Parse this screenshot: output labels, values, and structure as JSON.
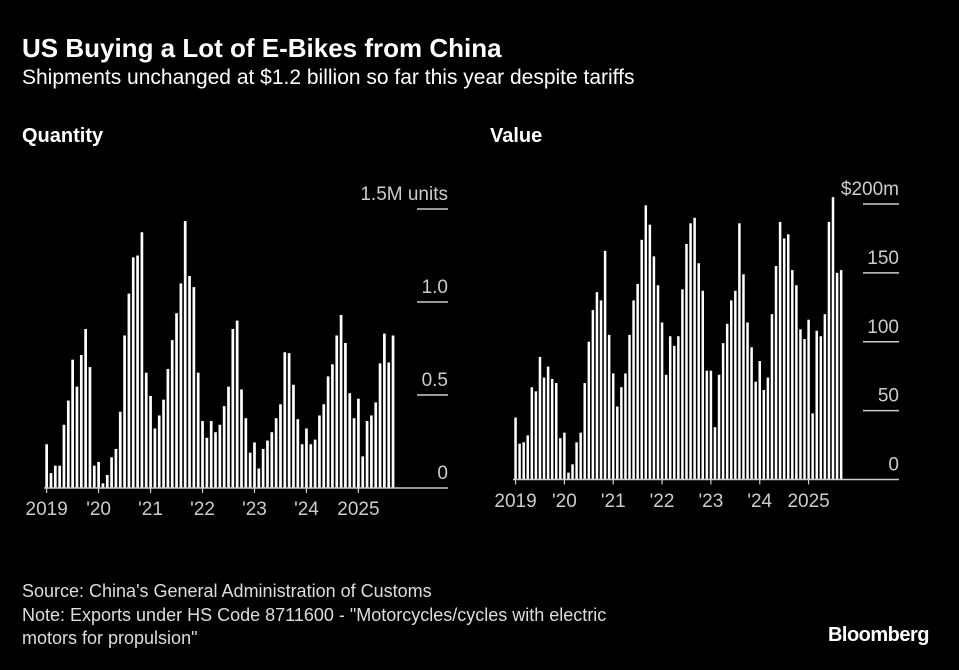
{
  "title": "US Buying a Lot of E-Bikes from China",
  "subtitle": "Shipments unchanged at $1.2 billion so far this year despite tariffs",
  "source": "Source: China's General Administration of Customs",
  "note_line1": "Note: Exports under HS Code 8711600 - \"Motorcycles/cycles with electric",
  "note_line2": "motors for propulsion\"",
  "logo": "Bloomberg",
  "colors": {
    "background": "#000000",
    "bars": "#ffffff",
    "text": "#cccccc"
  },
  "chart_data": [
    {
      "type": "bar",
      "title": "Quantity",
      "unit_label": "1.5M units",
      "frequency": "monthly",
      "period": "Jan 2019 - Sep 2025",
      "ylim": [
        0,
        1.5
      ],
      "yticks": [
        "0",
        "0.5",
        "1.0",
        "1.5M units"
      ],
      "xticks": [
        "2019",
        "'20",
        "'21",
        "'22",
        "'23",
        "'24",
        "2025"
      ],
      "values": [
        0.235,
        0.08,
        0.12,
        0.12,
        0.34,
        0.47,
        0.69,
        0.545,
        0.715,
        0.855,
        0.65,
        0.12,
        0.14,
        0.025,
        0.07,
        0.165,
        0.21,
        0.41,
        0.82,
        1.045,
        1.24,
        1.25,
        1.375,
        0.62,
        0.495,
        0.32,
        0.39,
        0.475,
        0.64,
        0.795,
        0.94,
        1.1,
        1.435,
        1.14,
        1.08,
        0.62,
        0.36,
        0.27,
        0.36,
        0.3,
        0.34,
        0.44,
        0.545,
        0.855,
        0.9,
        0.53,
        0.375,
        0.19,
        0.245,
        0.105,
        0.21,
        0.255,
        0.3,
        0.375,
        0.45,
        0.73,
        0.725,
        0.555,
        0.37,
        0.235,
        0.32,
        0.235,
        0.26,
        0.39,
        0.45,
        0.6,
        0.665,
        0.82,
        0.93,
        0.78,
        0.51,
        0.375,
        0.48,
        0.17,
        0.36,
        0.39,
        0.46,
        0.67,
        0.83,
        0.675,
        0.82
      ]
    },
    {
      "type": "bar",
      "title": "Value",
      "unit_label": "$200m",
      "frequency": "monthly",
      "period": "Jan 2019 - Sep 2025",
      "ylim": [
        0,
        200
      ],
      "yticks": [
        "0",
        "50",
        "100",
        "150",
        "$200m"
      ],
      "xticks": [
        "2019",
        "'20",
        "'21",
        "'22",
        "'23",
        "'24",
        "2025"
      ],
      "values": [
        45,
        26,
        27,
        32,
        67,
        64,
        89,
        74,
        82,
        73,
        70,
        30,
        34,
        5,
        11,
        27,
        34,
        70,
        100,
        123,
        136,
        130,
        166,
        105,
        77,
        53,
        67,
        77,
        105,
        130,
        142,
        174,
        199,
        185,
        162,
        141,
        114,
        76,
        104,
        97,
        104,
        138,
        171,
        186,
        190,
        157,
        137,
        79,
        79,
        38,
        76,
        99,
        113,
        130,
        137,
        186,
        149,
        114,
        96,
        71,
        86,
        65,
        74,
        120,
        155,
        187,
        175,
        178,
        152,
        141,
        109,
        102,
        116,
        48,
        108,
        104,
        120,
        187,
        205,
        150,
        152
      ]
    }
  ]
}
